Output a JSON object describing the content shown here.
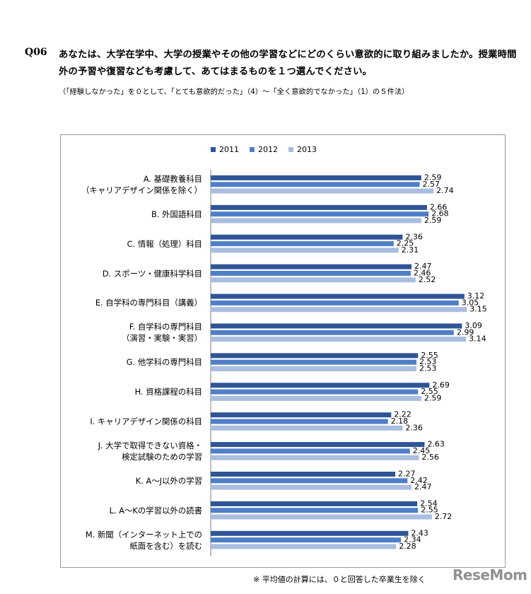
{
  "header": {
    "qnum": "Q06",
    "question": "あなたは、大学在学中、大学の授業やその他の学習などにどのくらい意欲的に取り組みましたか。授業時間外の予習や復習なども考慮して、あてはまるものを１つ選んでください。",
    "note": "（「経験しなかった」を０として、「とても意欲的だった」（4）〜「全く意欲的でなかった」（1）の５件法）"
  },
  "footnote": "※ 平均値の計算には、０と回答した卒業生を除く",
  "logo": "ReseMom",
  "colors": {
    "2011": "#2f5597",
    "2012": "#4f7fc6",
    "2013": "#a9bde0"
  },
  "chart_data": {
    "type": "bar",
    "orientation": "horizontal",
    "categories": [
      "A. 基礎教養科目\n（キャリアデザイン関係を除く）",
      "B. 外国語科目",
      "C. 情報（処理）科目",
      "D. スポーツ・健康科学科目",
      "E. 自学科の専門科目（講義）",
      "F. 自学科の専門科目\n（演習・実験・実習）",
      "G. 他学科の専門科目",
      "H. 資格課程の科目",
      "I. キャリアデザイン関係の科目",
      "J. 大学で取得できない資格・\n検定試験のための学習",
      "K. A〜J以外の学習",
      "L. A〜Kの学習以外の読書",
      "M. 新聞（インターネット上での\n紙面を含む）を読む"
    ],
    "series": [
      {
        "name": "2011",
        "values": [
          2.59,
          2.66,
          2.36,
          2.47,
          3.12,
          3.09,
          2.55,
          2.69,
          2.22,
          2.63,
          2.27,
          2.54,
          2.43
        ]
      },
      {
        "name": "2012",
        "values": [
          2.57,
          2.68,
          2.25,
          2.46,
          3.05,
          2.99,
          2.53,
          2.55,
          2.18,
          2.45,
          2.42,
          2.55,
          2.34
        ]
      },
      {
        "name": "2013",
        "values": [
          2.74,
          2.59,
          2.31,
          2.52,
          3.15,
          3.14,
          2.53,
          2.59,
          2.36,
          2.56,
          2.47,
          2.72,
          2.28
        ]
      }
    ],
    "xlim": [
      0,
      4
    ],
    "legend_position": "top-center",
    "grid": false,
    "data_labels": true
  }
}
